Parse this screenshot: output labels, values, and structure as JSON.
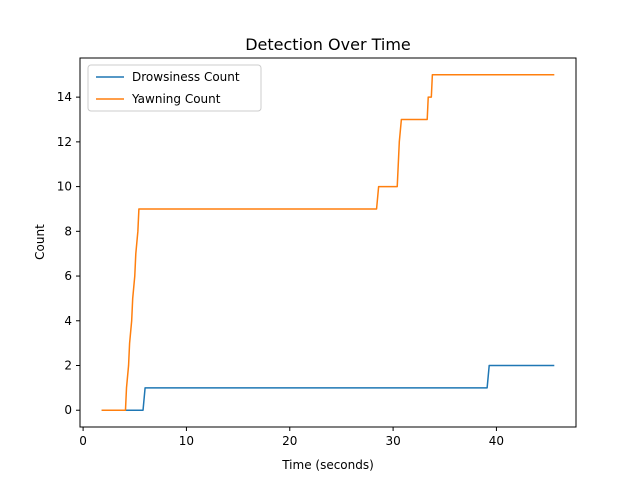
{
  "chart_data": {
    "type": "line",
    "title": "Detection Over Time",
    "xlabel": "Time (seconds)",
    "ylabel": "Count",
    "xlim": [
      -0.3,
      47.7
    ],
    "ylim": [
      -0.75,
      15.75
    ],
    "xticks": [
      0,
      10,
      20,
      30,
      40
    ],
    "yticks": [
      0,
      2,
      4,
      6,
      8,
      10,
      12,
      14
    ],
    "grid": false,
    "legend": "upper-left",
    "series": [
      {
        "name": "Drowsiness Count",
        "color": "#1f77b4",
        "points": [
          [
            1.8,
            0
          ],
          [
            5.8,
            0
          ],
          [
            6.0,
            1
          ],
          [
            39.1,
            1
          ],
          [
            39.3,
            2
          ],
          [
            45.6,
            2
          ]
        ]
      },
      {
        "name": "Yawning Count",
        "color": "#ff7f0e",
        "points": [
          [
            1.8,
            0
          ],
          [
            4.1,
            0
          ],
          [
            4.2,
            1
          ],
          [
            4.4,
            2
          ],
          [
            4.5,
            3
          ],
          [
            4.7,
            4
          ],
          [
            4.8,
            5
          ],
          [
            5.0,
            6
          ],
          [
            5.1,
            7
          ],
          [
            5.3,
            8
          ],
          [
            5.4,
            9
          ],
          [
            28.4,
            9
          ],
          [
            28.6,
            10
          ],
          [
            30.4,
            10
          ],
          [
            30.5,
            11
          ],
          [
            30.6,
            12
          ],
          [
            30.8,
            13
          ],
          [
            33.3,
            13
          ],
          [
            33.4,
            14
          ],
          [
            33.7,
            14
          ],
          [
            33.8,
            15
          ],
          [
            45.6,
            15
          ]
        ]
      }
    ]
  }
}
